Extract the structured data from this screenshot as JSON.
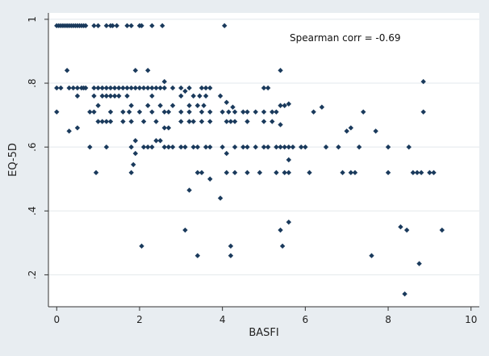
{
  "chart_data": {
    "type": "scatter",
    "title": "",
    "xlabel": "BASFI",
    "ylabel": "EQ-5D",
    "xlim": [
      -0.2,
      10.2
    ],
    "ylim": [
      0.1,
      1.02
    ],
    "xticks": [
      0,
      2,
      4,
      6,
      8,
      10
    ],
    "xtick_labels": [
      "0",
      "2",
      "4",
      "6",
      "8",
      "10"
    ],
    "yticks": [
      0.2,
      0.4,
      0.6,
      0.8,
      1.0
    ],
    "ytick_labels": [
      ".2",
      ".4",
      ".6",
      ".8",
      "1"
    ],
    "grid": "horizontal",
    "annotation": "Spearman corr = -0.69",
    "colors": {
      "background": "#e8edf1",
      "plot_area": "#ffffff",
      "marker": "#1a3a5c",
      "grid": "#e3e8ec"
    },
    "points": [
      [
        0.0,
        0.98
      ],
      [
        0.05,
        0.98
      ],
      [
        0.1,
        0.98
      ],
      [
        0.15,
        0.98
      ],
      [
        0.2,
        0.98
      ],
      [
        0.25,
        0.98
      ],
      [
        0.3,
        0.98
      ],
      [
        0.35,
        0.98
      ],
      [
        0.4,
        0.98
      ],
      [
        0.45,
        0.98
      ],
      [
        0.5,
        0.98
      ],
      [
        0.55,
        0.98
      ],
      [
        0.6,
        0.98
      ],
      [
        0.65,
        0.98
      ],
      [
        0.7,
        0.98
      ],
      [
        0.9,
        0.98
      ],
      [
        1.0,
        0.98
      ],
      [
        1.2,
        0.98
      ],
      [
        1.3,
        0.98
      ],
      [
        1.35,
        0.98
      ],
      [
        1.45,
        0.98
      ],
      [
        1.7,
        0.98
      ],
      [
        1.8,
        0.98
      ],
      [
        2.0,
        0.98
      ],
      [
        2.05,
        0.98
      ],
      [
        2.3,
        0.98
      ],
      [
        2.55,
        0.98
      ],
      [
        4.05,
        0.98
      ],
      [
        0.25,
        0.84
      ],
      [
        1.9,
        0.84
      ],
      [
        2.2,
        0.84
      ],
      [
        5.4,
        0.84
      ],
      [
        0.0,
        0.785
      ],
      [
        0.1,
        0.785
      ],
      [
        0.3,
        0.785
      ],
      [
        0.4,
        0.785
      ],
      [
        0.5,
        0.785
      ],
      [
        0.6,
        0.785
      ],
      [
        0.65,
        0.785
      ],
      [
        0.7,
        0.785
      ],
      [
        0.9,
        0.785
      ],
      [
        1.0,
        0.785
      ],
      [
        1.1,
        0.785
      ],
      [
        1.2,
        0.785
      ],
      [
        1.3,
        0.785
      ],
      [
        1.4,
        0.785
      ],
      [
        1.5,
        0.785
      ],
      [
        1.6,
        0.785
      ],
      [
        1.7,
        0.785
      ],
      [
        1.8,
        0.785
      ],
      [
        1.9,
        0.785
      ],
      [
        2.0,
        0.785
      ],
      [
        2.1,
        0.785
      ],
      [
        2.2,
        0.785
      ],
      [
        2.3,
        0.785
      ],
      [
        2.4,
        0.785
      ],
      [
        2.5,
        0.785
      ],
      [
        2.6,
        0.785
      ],
      [
        2.8,
        0.785
      ],
      [
        3.0,
        0.785
      ],
      [
        3.2,
        0.785
      ],
      [
        3.5,
        0.785
      ],
      [
        3.6,
        0.785
      ],
      [
        3.7,
        0.785
      ],
      [
        5.0,
        0.785
      ],
      [
        5.1,
        0.785
      ],
      [
        2.6,
        0.805
      ],
      [
        3.1,
        0.775
      ],
      [
        8.85,
        0.805
      ],
      [
        0.0,
        0.71
      ],
      [
        0.5,
        0.76
      ],
      [
        0.9,
        0.76
      ],
      [
        1.1,
        0.76
      ],
      [
        1.2,
        0.76
      ],
      [
        1.3,
        0.76
      ],
      [
        1.4,
        0.76
      ],
      [
        1.5,
        0.76
      ],
      [
        1.7,
        0.76
      ],
      [
        2.3,
        0.76
      ],
      [
        3.0,
        0.76
      ],
      [
        3.3,
        0.76
      ],
      [
        3.45,
        0.76
      ],
      [
        3.6,
        0.76
      ],
      [
        3.95,
        0.76
      ],
      [
        1.0,
        0.73
      ],
      [
        1.8,
        0.73
      ],
      [
        2.2,
        0.73
      ],
      [
        2.5,
        0.73
      ],
      [
        2.8,
        0.73
      ],
      [
        3.2,
        0.73
      ],
      [
        3.4,
        0.73
      ],
      [
        3.55,
        0.73
      ],
      [
        4.1,
        0.74
      ],
      [
        4.25,
        0.725
      ],
      [
        5.4,
        0.73
      ],
      [
        5.5,
        0.73
      ],
      [
        5.6,
        0.735
      ],
      [
        6.4,
        0.725
      ],
      [
        0.8,
        0.71
      ],
      [
        0.9,
        0.71
      ],
      [
        1.3,
        0.71
      ],
      [
        1.6,
        0.71
      ],
      [
        1.75,
        0.71
      ],
      [
        2.0,
        0.71
      ],
      [
        2.3,
        0.71
      ],
      [
        2.6,
        0.71
      ],
      [
        2.7,
        0.71
      ],
      [
        3.0,
        0.71
      ],
      [
        3.2,
        0.71
      ],
      [
        3.5,
        0.71
      ],
      [
        3.7,
        0.71
      ],
      [
        4.0,
        0.71
      ],
      [
        4.15,
        0.71
      ],
      [
        4.3,
        0.71
      ],
      [
        4.5,
        0.71
      ],
      [
        4.6,
        0.71
      ],
      [
        4.8,
        0.71
      ],
      [
        5.0,
        0.71
      ],
      [
        5.2,
        0.71
      ],
      [
        5.3,
        0.71
      ],
      [
        6.2,
        0.71
      ],
      [
        7.4,
        0.71
      ],
      [
        8.85,
        0.71
      ],
      [
        0.3,
        0.65
      ],
      [
        0.5,
        0.66
      ],
      [
        1.0,
        0.68
      ],
      [
        1.1,
        0.68
      ],
      [
        1.2,
        0.68
      ],
      [
        1.3,
        0.68
      ],
      [
        1.6,
        0.68
      ],
      [
        1.8,
        0.68
      ],
      [
        2.1,
        0.68
      ],
      [
        2.4,
        0.68
      ],
      [
        2.6,
        0.66
      ],
      [
        2.7,
        0.66
      ],
      [
        3.0,
        0.68
      ],
      [
        3.2,
        0.68
      ],
      [
        3.3,
        0.68
      ],
      [
        3.5,
        0.68
      ],
      [
        3.7,
        0.68
      ],
      [
        4.1,
        0.68
      ],
      [
        4.2,
        0.68
      ],
      [
        4.3,
        0.68
      ],
      [
        4.6,
        0.68
      ],
      [
        5.0,
        0.68
      ],
      [
        5.2,
        0.68
      ],
      [
        5.4,
        0.67
      ],
      [
        7.0,
        0.65
      ],
      [
        7.1,
        0.66
      ],
      [
        7.7,
        0.65
      ],
      [
        0.8,
        0.6
      ],
      [
        1.2,
        0.6
      ],
      [
        1.8,
        0.6
      ],
      [
        1.9,
        0.62
      ],
      [
        2.1,
        0.6
      ],
      [
        2.2,
        0.6
      ],
      [
        2.3,
        0.6
      ],
      [
        2.4,
        0.62
      ],
      [
        2.5,
        0.62
      ],
      [
        2.6,
        0.6
      ],
      [
        2.7,
        0.6
      ],
      [
        2.8,
        0.6
      ],
      [
        3.0,
        0.6
      ],
      [
        3.1,
        0.6
      ],
      [
        3.3,
        0.6
      ],
      [
        3.4,
        0.6
      ],
      [
        3.6,
        0.6
      ],
      [
        3.7,
        0.6
      ],
      [
        4.0,
        0.6
      ],
      [
        4.1,
        0.58
      ],
      [
        4.3,
        0.6
      ],
      [
        4.5,
        0.6
      ],
      [
        4.6,
        0.6
      ],
      [
        4.8,
        0.6
      ],
      [
        5.0,
        0.6
      ],
      [
        5.1,
        0.6
      ],
      [
        5.3,
        0.6
      ],
      [
        5.4,
        0.6
      ],
      [
        5.5,
        0.6
      ],
      [
        5.6,
        0.6
      ],
      [
        5.7,
        0.6
      ],
      [
        5.9,
        0.6
      ],
      [
        6.0,
        0.6
      ],
      [
        6.5,
        0.6
      ],
      [
        6.8,
        0.6
      ],
      [
        7.3,
        0.6
      ],
      [
        8.0,
        0.6
      ],
      [
        8.5,
        0.6
      ],
      [
        1.9,
        0.58
      ],
      [
        1.85,
        0.545
      ],
      [
        1.8,
        0.52
      ],
      [
        0.95,
        0.52
      ],
      [
        3.4,
        0.52
      ],
      [
        3.5,
        0.52
      ],
      [
        3.7,
        0.5
      ],
      [
        4.1,
        0.52
      ],
      [
        4.3,
        0.52
      ],
      [
        4.6,
        0.52
      ],
      [
        4.9,
        0.52
      ],
      [
        5.3,
        0.52
      ],
      [
        5.5,
        0.52
      ],
      [
        5.6,
        0.52
      ],
      [
        6.1,
        0.52
      ],
      [
        6.9,
        0.52
      ],
      [
        7.1,
        0.52
      ],
      [
        7.2,
        0.52
      ],
      [
        8.0,
        0.52
      ],
      [
        8.6,
        0.52
      ],
      [
        8.7,
        0.52
      ],
      [
        8.8,
        0.52
      ],
      [
        9.0,
        0.52
      ],
      [
        9.1,
        0.52
      ],
      [
        5.6,
        0.56
      ],
      [
        3.2,
        0.465
      ],
      [
        3.95,
        0.44
      ],
      [
        5.6,
        0.365
      ],
      [
        3.1,
        0.34
      ],
      [
        5.4,
        0.34
      ],
      [
        8.3,
        0.35
      ],
      [
        8.45,
        0.34
      ],
      [
        9.3,
        0.34
      ],
      [
        2.05,
        0.29
      ],
      [
        4.2,
        0.29
      ],
      [
        5.45,
        0.29
      ],
      [
        3.4,
        0.26
      ],
      [
        4.2,
        0.26
      ],
      [
        7.6,
        0.26
      ],
      [
        8.75,
        0.235
      ],
      [
        8.4,
        0.14
      ]
    ]
  }
}
